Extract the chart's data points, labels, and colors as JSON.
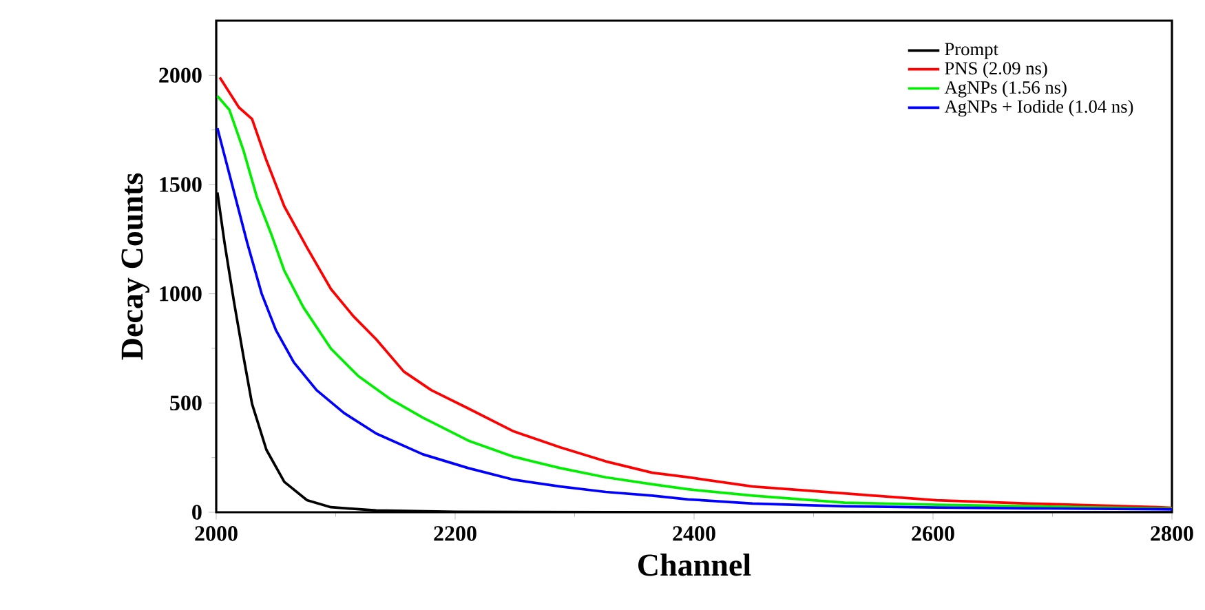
{
  "chart_data": {
    "type": "line",
    "xlabel": "Channel",
    "ylabel": "Decay Counts",
    "xlim": [
      2000,
      2800
    ],
    "ylim": [
      0,
      2250
    ],
    "xticks": [
      2000,
      2200,
      2400,
      2600,
      2800
    ],
    "yticks": [
      0,
      500,
      1000,
      1500,
      2000
    ],
    "legend": "top right",
    "grid": false,
    "marker": "none",
    "line_style": "solid",
    "series": [
      {
        "name": "Prompt",
        "color": "#000000",
        "x": [
          2001,
          2007,
          2015,
          2023,
          2030,
          2042,
          2057,
          2076,
          2096,
          2134,
          2200,
          2400,
          2600,
          2800
        ],
        "values": [
          1464,
          1232,
          959,
          707,
          496,
          286,
          139,
          55,
          23,
          8,
          2,
          0,
          0,
          0
        ]
      },
      {
        "name": "PNS (2.09 ns)",
        "color": "#ff0000",
        "x": [
          2003,
          2019,
          2030,
          2042,
          2057,
          2076,
          2096,
          2115,
          2134,
          2157,
          2180,
          2211,
          2249,
          2288,
          2326,
          2365,
          2395,
          2449,
          2526,
          2603,
          2680,
          2788,
          2800
        ],
        "values": [
          1990,
          1853,
          1800,
          1611,
          1400,
          1211,
          1022,
          896,
          791,
          644,
          559,
          475,
          370,
          297,
          233,
          181,
          160,
          118,
          86,
          55,
          40,
          23,
          20
        ]
      },
      {
        "name": "AgNPs (1.56 ns)",
        "color": "#00ee00",
        "x": [
          2001,
          2011,
          2023,
          2034,
          2046,
          2057,
          2073,
          2096,
          2119,
          2146,
          2173,
          2211,
          2249,
          2288,
          2326,
          2365,
          2395,
          2449,
          2526,
          2603,
          2680,
          2788,
          2800
        ],
        "values": [
          1905,
          1842,
          1653,
          1443,
          1274,
          1106,
          938,
          749,
          623,
          517,
          433,
          328,
          254,
          202,
          160,
          128,
          105,
          76,
          44,
          34,
          27,
          17,
          16
        ]
      },
      {
        "name": "AgNPs + Iodide (1.04 ns)",
        "color": "#0000ff",
        "x": [
          2001,
          2007,
          2015,
          2026,
          2038,
          2050,
          2065,
          2084,
          2107,
          2134,
          2173,
          2211,
          2249,
          2288,
          2326,
          2365,
          2395,
          2449,
          2526,
          2603,
          2680,
          2788,
          2800
        ],
        "values": [
          1758,
          1632,
          1464,
          1232,
          1001,
          833,
          686,
          559,
          454,
          360,
          265,
          202,
          149,
          118,
          93,
          76,
          59,
          40,
          27,
          22,
          18,
          14,
          13
        ]
      }
    ]
  }
}
